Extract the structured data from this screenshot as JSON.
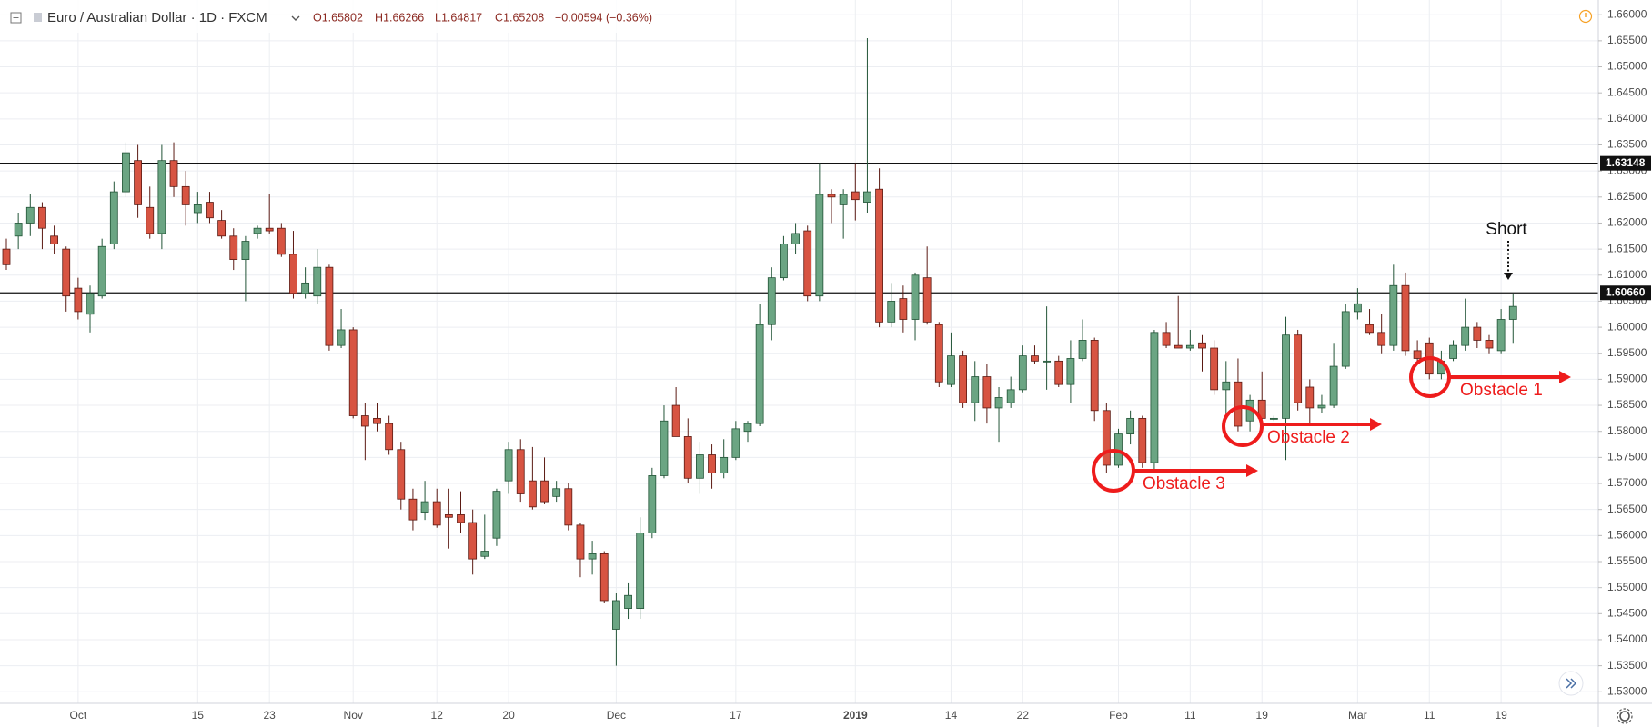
{
  "header": {
    "symbol": "Euro / Australian Dollar · 1D · FXCM",
    "ohlc": [
      "O1.65802",
      "H1.66266",
      "L1.64817",
      "C1.65208"
    ],
    "change": "−0.00594 (−0.36%)"
  },
  "chart_data": {
    "type": "candlestick",
    "categories": [
      null,
      null,
      null,
      null,
      null,
      null,
      "Oct",
      null,
      null,
      null,
      null,
      null,
      null,
      null,
      null,
      null,
      "15",
      null,
      null,
      null,
      null,
      null,
      "23",
      null,
      null,
      null,
      null,
      null,
      null,
      "Nov",
      null,
      null,
      null,
      null,
      null,
      null,
      "12",
      null,
      null,
      null,
      null,
      null,
      "20",
      null,
      null,
      null,
      null,
      null,
      null,
      null,
      null,
      "Dec",
      null,
      null,
      null,
      null,
      null,
      null,
      null,
      null,
      null,
      "17",
      null,
      null,
      null,
      null,
      null,
      null,
      null,
      null,
      null,
      "2019",
      null,
      null,
      null,
      null,
      null,
      null,
      null,
      "14",
      null,
      null,
      null,
      null,
      null,
      "22",
      null,
      null,
      null,
      null,
      null,
      null,
      null,
      "Feb",
      null,
      null,
      null,
      null,
      null,
      "11",
      null,
      null,
      null,
      null,
      null,
      "19",
      null,
      null,
      null,
      null,
      null,
      null,
      null,
      "Mar",
      null,
      null,
      null,
      null,
      null,
      "11",
      null,
      null,
      null,
      null,
      null,
      "19",
      null
    ],
    "open": [
      1.615,
      1.6175,
      1.62,
      1.623,
      1.6175,
      1.615,
      1.6075,
      1.6025,
      1.606,
      1.616,
      1.626,
      1.632,
      1.623,
      1.618,
      1.632,
      1.627,
      1.622,
      1.624,
      1.6205,
      1.6175,
      1.613,
      1.618,
      1.619,
      1.619,
      1.614,
      1.6065,
      1.606,
      1.6115,
      1.5965,
      1.5995,
      1.583,
      1.5825,
      1.5815,
      1.5765,
      1.567,
      1.5645,
      1.5665,
      1.564,
      1.564,
      1.5625,
      1.556,
      1.5595,
      1.5705,
      1.5765,
      1.5705,
      1.5705,
      1.5675,
      1.569,
      1.562,
      1.5555,
      1.5565,
      1.542,
      1.546,
      1.546,
      1.5605,
      1.5715,
      1.585,
      1.579,
      1.571,
      1.5755,
      1.572,
      1.575,
      1.58,
      1.5815,
      1.6005,
      1.6095,
      1.616,
      1.6185,
      1.606,
      1.6255,
      1.6235,
      1.626,
      1.624,
      1.6265,
      1.601,
      1.6055,
      1.6015,
      1.6095,
      1.6005,
      1.589,
      1.5945,
      1.5855,
      1.5905,
      1.5845,
      1.5855,
      1.588,
      1.5945,
      1.5935,
      1.5935,
      1.589,
      1.594,
      1.5975,
      1.584,
      1.5735,
      1.5795,
      1.5825,
      1.574,
      1.599,
      1.5965,
      1.596,
      1.597,
      1.596,
      1.588,
      1.5895,
      1.582,
      1.586,
      1.5825,
      1.5825,
      1.5985,
      1.5885,
      1.5845,
      1.585,
      1.5925,
      1.603,
      1.6005,
      1.599,
      1.5965,
      1.608,
      1.5955,
      1.597,
      1.591,
      1.594,
      1.5965,
      1.6,
      1.5975,
      1.5955,
      1.6015
    ],
    "high": [
      1.617,
      1.622,
      1.6255,
      1.624,
      1.6195,
      1.6155,
      1.6095,
      1.608,
      1.617,
      1.628,
      1.6355,
      1.635,
      1.627,
      1.635,
      1.6355,
      1.63,
      1.626,
      1.626,
      1.6225,
      1.619,
      1.6175,
      1.6195,
      1.6255,
      1.62,
      1.6185,
      1.6115,
      1.615,
      1.612,
      1.6035,
      1.6,
      1.5855,
      1.5855,
      1.583,
      1.578,
      1.569,
      1.5705,
      1.569,
      1.569,
      1.5685,
      1.565,
      1.564,
      1.569,
      1.578,
      1.5785,
      1.577,
      1.575,
      1.5705,
      1.57,
      1.5625,
      1.559,
      1.557,
      1.549,
      1.551,
      1.5635,
      1.573,
      1.585,
      1.5885,
      1.5825,
      1.578,
      1.5775,
      1.5785,
      1.582,
      1.582,
      1.6045,
      1.6115,
      1.6175,
      1.62,
      1.6195,
      1.6315,
      1.6265,
      1.6265,
      1.6315,
      1.6555,
      1.6305,
      1.6085,
      1.608,
      1.6105,
      1.6155,
      1.601,
      1.599,
      1.5955,
      1.5935,
      1.593,
      1.5885,
      1.5905,
      1.5965,
      1.5965,
      1.604,
      1.5945,
      1.5975,
      1.6015,
      1.598,
      1.5855,
      1.5805,
      1.584,
      1.583,
      1.5995,
      1.601,
      1.606,
      1.5995,
      1.5985,
      1.5975,
      1.5935,
      1.594,
      1.587,
      1.5915,
      1.583,
      1.602,
      1.5995,
      1.59,
      1.587,
      1.597,
      1.6045,
      1.6075,
      1.6035,
      1.6025,
      1.612,
      1.6105,
      1.5975,
      1.598,
      1.5955,
      1.5975,
      1.6055,
      1.601,
      1.5985,
      1.6035,
      1.6065
    ],
    "low": [
      1.611,
      1.615,
      1.6175,
      1.615,
      1.614,
      1.603,
      1.6015,
      1.599,
      1.6055,
      1.615,
      1.625,
      1.621,
      1.617,
      1.615,
      1.625,
      1.6195,
      1.62,
      1.62,
      1.617,
      1.611,
      1.605,
      1.617,
      1.618,
      1.6135,
      1.6055,
      1.6055,
      1.6045,
      1.5955,
      1.596,
      1.5825,
      1.5745,
      1.58,
      1.5755,
      1.565,
      1.561,
      1.563,
      1.5615,
      1.5575,
      1.5605,
      1.5525,
      1.5555,
      1.558,
      1.568,
      1.5665,
      1.565,
      1.566,
      1.5665,
      1.561,
      1.552,
      1.5525,
      1.547,
      1.535,
      1.544,
      1.544,
      1.5595,
      1.571,
      1.579,
      1.57,
      1.568,
      1.569,
      1.571,
      1.5745,
      1.578,
      1.581,
      1.5975,
      1.609,
      1.614,
      1.605,
      1.605,
      1.62,
      1.617,
      1.6205,
      1.622,
      1.6,
      1.6,
      1.599,
      1.5975,
      1.6005,
      1.5885,
      1.5885,
      1.5845,
      1.582,
      1.5815,
      1.578,
      1.5845,
      1.5875,
      1.593,
      1.588,
      1.5885,
      1.5855,
      1.5935,
      1.582,
      1.572,
      1.573,
      1.5775,
      1.573,
      1.5725,
      1.596,
      1.596,
      1.5955,
      1.5915,
      1.587,
      1.583,
      1.58,
      1.58,
      1.582,
      1.582,
      1.5745,
      1.584,
      1.5815,
      1.5835,
      1.5845,
      1.592,
      1.6015,
      1.5985,
      1.595,
      1.5955,
      1.5945,
      1.593,
      1.59,
      1.59,
      1.5935,
      1.5955,
      1.596,
      1.595,
      1.595,
      1.597
    ],
    "close": [
      1.612,
      1.62,
      1.623,
      1.619,
      1.616,
      1.606,
      1.603,
      1.6065,
      1.6155,
      1.626,
      1.6335,
      1.6235,
      1.618,
      1.632,
      1.627,
      1.6235,
      1.6235,
      1.621,
      1.6175,
      1.613,
      1.6165,
      1.619,
      1.6185,
      1.614,
      1.6065,
      1.6085,
      1.6115,
      1.5965,
      1.5995,
      1.583,
      1.581,
      1.5815,
      1.5765,
      1.567,
      1.563,
      1.5665,
      1.562,
      1.5635,
      1.5625,
      1.5555,
      1.557,
      1.5685,
      1.5765,
      1.568,
      1.5655,
      1.5665,
      1.569,
      1.562,
      1.5555,
      1.5565,
      1.5475,
      1.5475,
      1.5485,
      1.5605,
      1.5715,
      1.582,
      1.579,
      1.571,
      1.5755,
      1.572,
      1.575,
      1.5805,
      1.5815,
      1.6005,
      1.6095,
      1.616,
      1.618,
      1.606,
      1.6255,
      1.625,
      1.6255,
      1.6245,
      1.626,
      1.601,
      1.605,
      1.6015,
      1.61,
      1.601,
      1.5895,
      1.5945,
      1.5855,
      1.5905,
      1.5845,
      1.5865,
      1.588,
      1.5945,
      1.5935,
      1.5935,
      1.589,
      1.594,
      1.5975,
      1.584,
      1.5735,
      1.5795,
      1.5825,
      1.574,
      1.599,
      1.5965,
      1.596,
      1.5965,
      1.596,
      1.588,
      1.5895,
      1.581,
      1.586,
      1.5825,
      1.5825,
      1.5985,
      1.5855,
      1.5845,
      1.585,
      1.5925,
      1.603,
      1.6045,
      1.599,
      1.5965,
      1.608,
      1.5955,
      1.594,
      1.591,
      1.5935,
      1.5965,
      1.6,
      1.5975,
      1.596,
      1.6015,
      1.604
    ],
    "up_color": "#6ba583",
    "down_color": "#d75442",
    "ylim": [
      1.52778,
      1.66283
    ],
    "yticks": [
      {
        "value": 1.53,
        "label": "1.53000"
      },
      {
        "value": 1.535,
        "label": "1.53500"
      },
      {
        "value": 1.54,
        "label": "1.54000"
      },
      {
        "value": 1.545,
        "label": "1.54500"
      },
      {
        "value": 1.55,
        "label": "1.55000"
      },
      {
        "value": 1.555,
        "label": "1.55500"
      },
      {
        "value": 1.56,
        "label": "1.56000"
      },
      {
        "value": 1.565,
        "label": "1.56500"
      },
      {
        "value": 1.57,
        "label": "1.57000"
      },
      {
        "value": 1.575,
        "label": "1.57500"
      },
      {
        "value": 1.58,
        "label": "1.58000"
      },
      {
        "value": 1.585,
        "label": "1.58500"
      },
      {
        "value": 1.59,
        "label": "1.59000"
      },
      {
        "value": 1.595,
        "label": "1.59500"
      },
      {
        "value": 1.6,
        "label": "1.60000"
      },
      {
        "value": 1.605,
        "label": "1.60500"
      },
      {
        "value": 1.61,
        "label": "1.61000"
      },
      {
        "value": 1.615,
        "label": "1.61500"
      },
      {
        "value": 1.62,
        "label": "1.62000"
      },
      {
        "value": 1.625,
        "label": "1.62500"
      },
      {
        "value": 1.63,
        "label": "1.63000"
      },
      {
        "value": 1.635,
        "label": "1.63500"
      },
      {
        "value": 1.64,
        "label": "1.64000"
      },
      {
        "value": 1.645,
        "label": "1.64500"
      },
      {
        "value": 1.65,
        "label": "1.65000"
      },
      {
        "value": 1.655,
        "label": "1.65500"
      },
      {
        "value": 1.66,
        "label": "1.66000"
      }
    ],
    "levels": [
      1.63148,
      {
        "value": 1.6066,
        "label": "1.60660"
      }
    ],
    "grid": true,
    "annotations": {
      "short": "Short",
      "obstacles": [
        "Obstacle 1",
        "Obstacle 2",
        "Obstacle 3"
      ]
    }
  }
}
